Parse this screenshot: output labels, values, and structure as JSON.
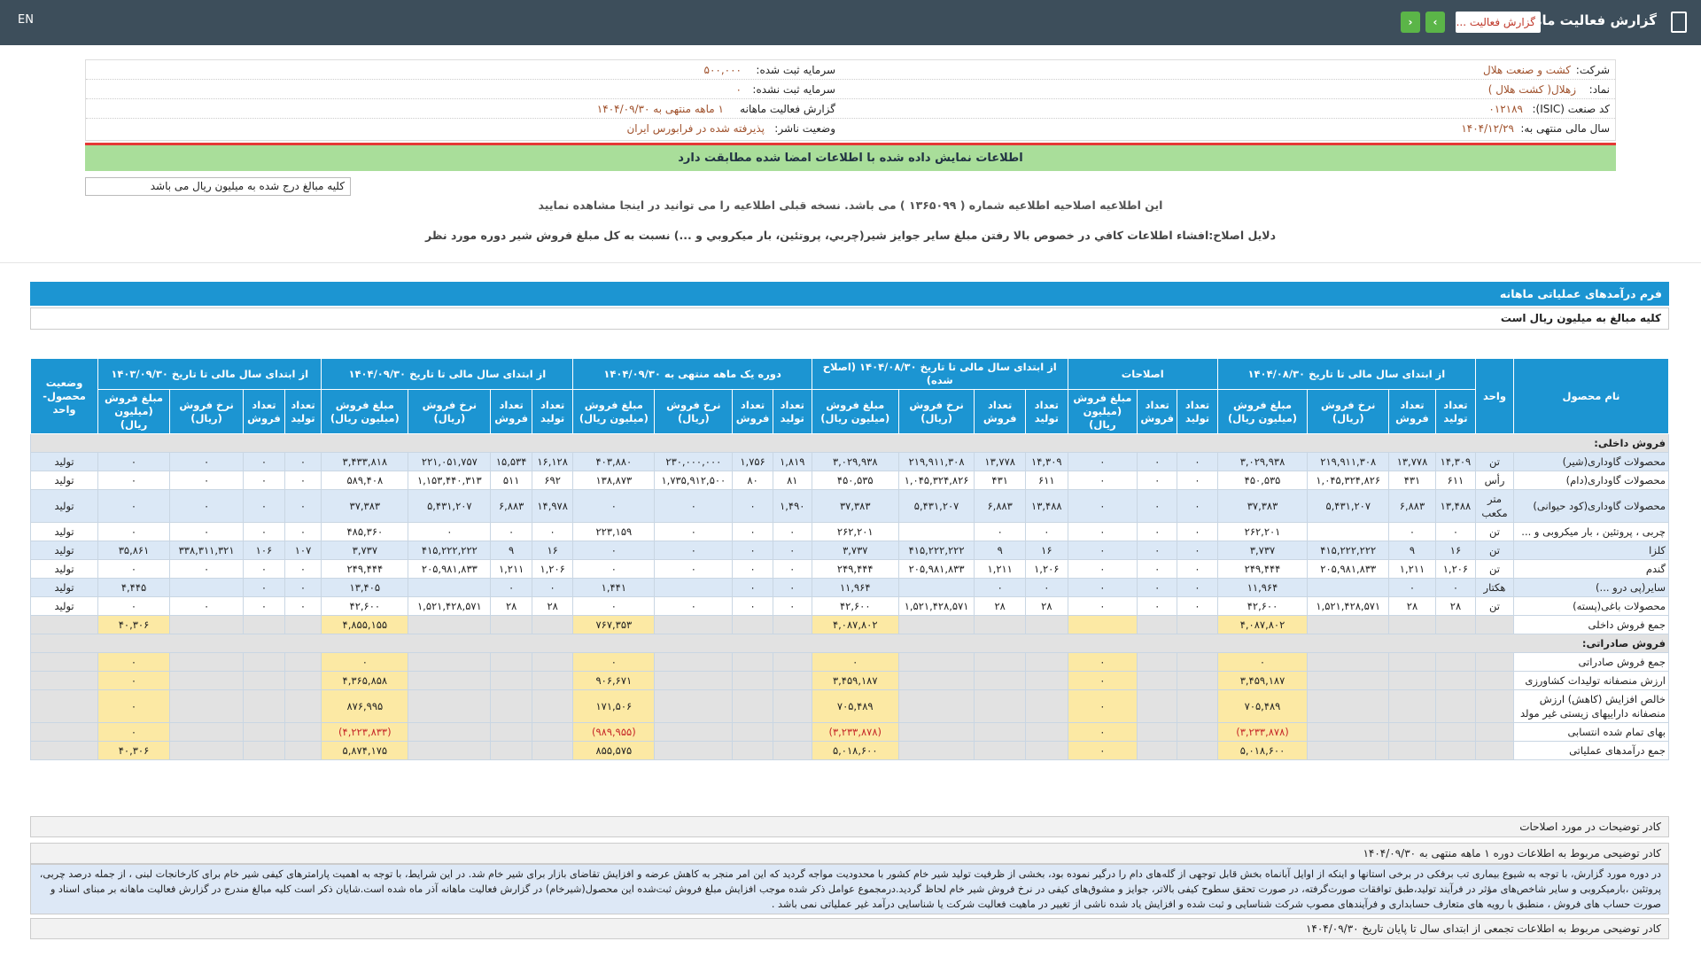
{
  "topbar": {
    "title": "گزارش فعالیت ماهانه",
    "dropdown": "گزارش فعالیت ...",
    "language": "EN"
  },
  "info": {
    "company_label": "شرکت:",
    "company": "کشت و صنعت هلال",
    "symbol_label": "نماد:",
    "symbol": "زهلال( کشت هلال )",
    "isic_label": "کد صنعت (ISIC):",
    "isic": "۰۱۲۱۸۹",
    "fiscal_label": "سال مالی منتهی به:",
    "fiscal": "۱۴۰۴/۱۲/۲۹",
    "capital_label": "سرمایه ثبت شده:",
    "capital": "۵۰۰,۰۰۰",
    "unreg_label": "سرمایه ثبت نشده:",
    "unreg": "۰",
    "report_label": "گزارش فعالیت ماهانه",
    "report": "۱ ماهه منتهی به ۱۴۰۴/۰۹/۳۰",
    "status_label": "وضعیت ناشر:",
    "status": "پذیرفته شده در فرابورس ایران"
  },
  "verified": "اطلاعات نمایش داده شده با اطلاعات امضا شده مطابقت دارد",
  "units_note": "کلیه مبالغ درج شده به میلیون ریال می باشد",
  "notice": {
    "before": "این اطلاعیه اصلاحیه اطلاعیه شماره ( ۱۳۶۵۰۹۹ ) می باشد. نسخه قبلی اطلاعیه را می توانید در",
    "link": "اینجا",
    "after": "مشاهده نمایید",
    "reason": "دلایل اصلاح:افشاء اطلاعات کافي در خصوص بالا رفتن مبلغ ساير جوايز شير(چربي، پروتئين، بار ميكروبي و ...) نسبت به كل مبلغ فروش شير دوره مورد نظر"
  },
  "form": {
    "title": "فرم درآمدهای عملیاتی ماهانه",
    "units": "کلیه مبالغ به میلیون ریال است"
  },
  "table": {
    "header": {
      "name": "نام محصول",
      "unit": "واحد",
      "status": "وضعیت محصول-واحد",
      "groups": [
        {
          "title": "از ابتدای سال مالی تا تاریخ ۱۴۰۴/۰۸/۳۰",
          "columns": [
            "تعداد تولید",
            "تعداد فروش",
            "نرخ فروش (ریال)",
            "مبلغ فروش (میلیون ریال)"
          ]
        },
        {
          "title": "اصلاحات",
          "columns": [
            "تعداد تولید",
            "تعداد فروش",
            "مبلغ فروش (میلیون ریال)"
          ]
        },
        {
          "title": "از ابتدای سال مالی تا تاریخ ۱۴۰۴/۰۸/۳۰ (اصلاح شده)",
          "columns": [
            "تعداد تولید",
            "تعداد فروش",
            "نرخ فروش (ریال)",
            "مبلغ فروش (میلیون ریال)"
          ]
        },
        {
          "title": "دوره یک ماهه منتهی به ۱۴۰۴/۰۹/۳۰",
          "columns": [
            "تعداد تولید",
            "تعداد فروش",
            "نرخ فروش (ریال)",
            "مبلغ فروش (میلیون ریال)"
          ]
        },
        {
          "title": "از ابتدای سال مالی تا تاریخ ۱۴۰۴/۰۹/۳۰",
          "columns": [
            "تعداد تولید",
            "تعداد فروش",
            "نرخ فروش (ریال)",
            "مبلغ فروش (میلیون ریال)"
          ]
        },
        {
          "title": "از ابتدای سال مالی تا تاریخ ۱۴۰۳/۰۹/۳۰",
          "columns": [
            "تعداد تولید",
            "تعداد فروش",
            "نرخ فروش (ریال)",
            "مبلغ فروش (میلیون ریال)"
          ]
        }
      ]
    },
    "rows": [
      {
        "heading": "فروش داخلی:"
      },
      {
        "name": "محصولات گاوداری(شیر)",
        "unit": "تن",
        "cells": [
          [
            "۱۴,۳۰۹",
            "۱۳,۷۷۸",
            "۲۱۹,۹۱۱,۳۰۸",
            "۳,۰۲۹,۹۳۸"
          ],
          [
            "۰",
            "۰",
            "۰"
          ],
          [
            "۱۴,۳۰۹",
            "۱۳,۷۷۸",
            "۲۱۹,۹۱۱,۳۰۸",
            "۳,۰۲۹,۹۳۸"
          ],
          [
            "۱,۸۱۹",
            "۱,۷۵۶",
            "۲۳۰,۰۰۰,۰۰۰",
            "۴۰۳,۸۸۰"
          ],
          [
            "۱۶,۱۲۸",
            "۱۵,۵۳۴",
            "۲۲۱,۰۵۱,۷۵۷",
            "۳,۴۳۳,۸۱۸"
          ],
          [
            "۰",
            "۰",
            "۰",
            "۰"
          ]
        ],
        "status": "تولید"
      },
      {
        "name": "محصولات گاوداری(دام)",
        "unit": "رأس",
        "cells": [
          [
            "۶۱۱",
            "۴۳۱",
            "۱,۰۴۵,۳۲۴,۸۲۶",
            "۴۵۰,۵۳۵"
          ],
          [
            "۰",
            "۰",
            "۰"
          ],
          [
            "۶۱۱",
            "۴۳۱",
            "۱,۰۴۵,۳۲۴,۸۲۶",
            "۴۵۰,۵۳۵"
          ],
          [
            "۸۱",
            "۸۰",
            "۱,۷۳۵,۹۱۲,۵۰۰",
            "۱۳۸,۸۷۳"
          ],
          [
            "۶۹۲",
            "۵۱۱",
            "۱,۱۵۳,۴۴۰,۳۱۳",
            "۵۸۹,۴۰۸"
          ],
          [
            "۰",
            "۰",
            "۰",
            "۰"
          ]
        ],
        "status": "تولید"
      },
      {
        "name": "محصولات گاوداری(کود حیوانی)",
        "unit": "متر مکعب",
        "cells": [
          [
            "۱۳,۴۸۸",
            "۶,۸۸۳",
            "۵,۴۳۱,۲۰۷",
            "۳۷,۳۸۳"
          ],
          [
            "۰",
            "۰",
            "۰"
          ],
          [
            "۱۳,۴۸۸",
            "۶,۸۸۳",
            "۵,۴۳۱,۲۰۷",
            "۳۷,۳۸۳"
          ],
          [
            "۱,۴۹۰",
            "۰",
            "۰",
            "۰"
          ],
          [
            "۱۴,۹۷۸",
            "۶,۸۸۳",
            "۵,۴۳۱,۲۰۷",
            "۳۷,۳۸۳"
          ],
          [
            "۰",
            "۰",
            "۰",
            "۰"
          ]
        ],
        "status": "تولید"
      },
      {
        "name": "چربی ، پروتئین ، بار میکروبی و ...",
        "unit": "تن",
        "cells": [
          [
            "۰",
            "۰",
            null,
            "۲۶۲,۲۰۱"
          ],
          [
            "۰",
            "۰",
            "۰"
          ],
          [
            "۰",
            "۰",
            null,
            "۲۶۲,۲۰۱"
          ],
          [
            "۰",
            "۰",
            "۰",
            "۲۲۳,۱۵۹"
          ],
          [
            "۰",
            "۰",
            "۰",
            "۴۸۵,۳۶۰"
          ],
          [
            "۰",
            "۰",
            "۰",
            "۰"
          ]
        ],
        "status": "تولید"
      },
      {
        "name": "کلزا",
        "unit": "تن",
        "cells": [
          [
            "۱۶",
            "۹",
            "۴۱۵,۲۲۲,۲۲۲",
            "۳,۷۳۷"
          ],
          [
            "۰",
            "۰",
            "۰"
          ],
          [
            "۱۶",
            "۹",
            "۴۱۵,۲۲۲,۲۲۲",
            "۳,۷۳۷"
          ],
          [
            "۰",
            "۰",
            "۰",
            "۰"
          ],
          [
            "۱۶",
            "۹",
            "۴۱۵,۲۲۲,۲۲۲",
            "۳,۷۳۷"
          ],
          [
            "۱۰۷",
            "۱۰۶",
            "۳۳۸,۳۱۱,۳۲۱",
            "۳۵,۸۶۱"
          ]
        ],
        "status": "تولید"
      },
      {
        "name": "گندم",
        "unit": "تن",
        "cells": [
          [
            "۱,۲۰۶",
            "۱,۲۱۱",
            "۲۰۵,۹۸۱,۸۳۳",
            "۲۴۹,۴۴۴"
          ],
          [
            "۰",
            "۰",
            "۰"
          ],
          [
            "۱,۲۰۶",
            "۱,۲۱۱",
            "۲۰۵,۹۸۱,۸۳۳",
            "۲۴۹,۴۴۴"
          ],
          [
            "۰",
            "۰",
            "۰",
            "۰"
          ],
          [
            "۱,۲۰۶",
            "۱,۲۱۱",
            "۲۰۵,۹۸۱,۸۳۳",
            "۲۴۹,۴۴۴"
          ],
          [
            "۰",
            "۰",
            "۰",
            "۰"
          ]
        ],
        "status": "تولید"
      },
      {
        "name": "سایر(پی درو ...)",
        "unit": "هکتار",
        "cells": [
          [
            "۰",
            "۰",
            null,
            "۱۱,۹۶۴"
          ],
          [
            "۰",
            "۰",
            "۰"
          ],
          [
            "۰",
            "۰",
            null,
            "۱۱,۹۶۴"
          ],
          [
            "۰",
            "۰",
            null,
            "۱,۴۴۱"
          ],
          [
            "۰",
            "۰",
            null,
            "۱۳,۴۰۵"
          ],
          [
            "۰",
            "۰",
            null,
            "۴,۴۴۵"
          ]
        ],
        "status": "تولید"
      },
      {
        "name": "محصولات باغی(پسته)",
        "unit": "تن",
        "cells": [
          [
            "۲۸",
            "۲۸",
            "۱,۵۲۱,۴۲۸,۵۷۱",
            "۴۲,۶۰۰"
          ],
          [
            "۰",
            "۰",
            "۰"
          ],
          [
            "۲۸",
            "۲۸",
            "۱,۵۲۱,۴۲۸,۵۷۱",
            "۴۲,۶۰۰"
          ],
          [
            "۰",
            "۰",
            "۰",
            "۰"
          ],
          [
            "۲۸",
            "۲۸",
            "۱,۵۲۱,۴۲۸,۵۷۱",
            "۴۲,۶۰۰"
          ],
          [
            "۰",
            "۰",
            "۰",
            "۰"
          ]
        ],
        "status": "تولید"
      },
      {
        "label": "جمع فروش داخلی",
        "amounts": [
          "۴,۰۸۷,۸۰۲",
          null,
          "۴,۰۸۷,۸۰۲",
          "۷۶۷,۳۵۳",
          "۴,۸۵۵,۱۵۵",
          "۴۰,۳۰۶"
        ]
      },
      {
        "heading": "فروش صادراتی:"
      },
      {
        "label": "جمع فروش صادراتی",
        "amounts": [
          "۰",
          "۰",
          "۰",
          "۰",
          "۰",
          "۰"
        ]
      },
      {
        "label": "ارزش منصفانه تولیدات کشاورزی",
        "amounts": [
          "۳,۴۵۹,۱۸۷",
          "۰",
          "۳,۴۵۹,۱۸۷",
          "۹۰۶,۶۷۱",
          "۴,۳۶۵,۸۵۸",
          "۰"
        ]
      },
      {
        "label": "خالص افزایش (کاهش) ارزش منصفانه داراییهای زیستی غیر مولد",
        "amounts": [
          "۷۰۵,۴۸۹",
          "۰",
          "۷۰۵,۴۸۹",
          "۱۷۱,۵۰۶",
          "۸۷۶,۹۹۵",
          "۰"
        ]
      },
      {
        "label": "بهای تمام شده انتسابی",
        "amounts": [
          "(۳,۲۳۳,۸۷۸)",
          "۰",
          "(۳,۲۳۳,۸۷۸)",
          "(۹۸۹,۹۵۵)",
          "(۴,۲۲۳,۸۳۳)",
          "۰"
        ]
      },
      {
        "label": "جمع درآمدهای عملیاتی",
        "amounts": [
          "۵,۰۱۸,۶۰۰",
          "۰",
          "۵,۰۱۸,۶۰۰",
          "۸۵۵,۵۷۵",
          "۵,۸۷۴,۱۷۵",
          "۴۰,۳۰۶"
        ]
      }
    ]
  },
  "notes": {
    "title": "کادر توضیحات در مورد اصلاحات",
    "monthly_title": "کادر توضیحی مربوط به اطلاعات دوره ۱ ماهه منتهی به ۱۴۰۴/۰۹/۳۰",
    "monthly_text": "در دوره مورد گزارش، با توجه به شیوع بیماری تب برفکی در برخی استانها و اینکه از اوایل آبانماه بخش قابل توجهی از گله‌های دام را درگیر نموده بود، بخشی از ظرفیت تولید شیر خام کشور با محدودیت مواجه گردید که این امر منجر به کاهش عرضه و افزایش تقاضای بازار برای شیر خام شد. در این شرایط، با توجه به اهمیت پارامترهای کیفی شیر خام برای کارخانجات لبنی ، از جمله درصد چربی، پروتئین ،بارمیکروبی و سایر شاخص‌های مؤثر در فرآیند تولید،طبق توافقات صورت‌گرفته، در صورت تحقق سطوح کیفی بالاتر، جوایز و مشوق‌های کیفی در نرخ فروش شیر خام لحاظ گردید.درمجموع عوامل ذکر شده موجب افزایش مبلغ فروش ثبت‌شده این محصول(شیرخام) در گزارش فعالیت ماهانه آذر ماه شده است.شایان ذکر است کلیه مبالغ مندرج در گزارش فعالیت ماهانه بر مبنای اسناد و صورت حساب های فروش ، منطبق با رویه های متعارف حسابداری و فرآیندهای مصوب شرکت شناسایی و ثبت شده و افزایش یاد شده ناشی از تغییر در ماهیت فعالیت شرکت یا شناسایی درآمد غیر عملیاتی نمی باشد .",
    "cumulative_title": "کادر توضیحی مربوط به اطلاعات تجمعی از ابتدای سال تا پایان تاریخ ۱۴۰۴/۰۹/۳۰"
  }
}
